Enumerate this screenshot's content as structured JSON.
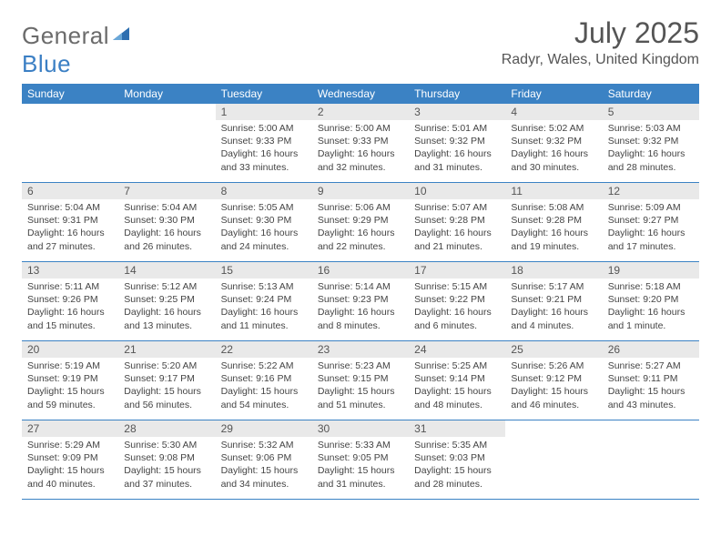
{
  "brand": {
    "text1": "General",
    "text2": "Blue",
    "logo_color": "#2e6fb0"
  },
  "title": "July 2025",
  "location": "Radyr, Wales, United Kingdom",
  "colors": {
    "header_bg": "#3b82c4",
    "header_text": "#ffffff",
    "daynum_bg": "#e9e9e9",
    "border": "#3b82c4"
  },
  "dow": [
    "Sunday",
    "Monday",
    "Tuesday",
    "Wednesday",
    "Thursday",
    "Friday",
    "Saturday"
  ],
  "weeks": [
    [
      {
        "n": "",
        "sr": "",
        "ss": "",
        "dl": ""
      },
      {
        "n": "",
        "sr": "",
        "ss": "",
        "dl": ""
      },
      {
        "n": "1",
        "sr": "5:00 AM",
        "ss": "9:33 PM",
        "dl": "16 hours and 33 minutes."
      },
      {
        "n": "2",
        "sr": "5:00 AM",
        "ss": "9:33 PM",
        "dl": "16 hours and 32 minutes."
      },
      {
        "n": "3",
        "sr": "5:01 AM",
        "ss": "9:32 PM",
        "dl": "16 hours and 31 minutes."
      },
      {
        "n": "4",
        "sr": "5:02 AM",
        "ss": "9:32 PM",
        "dl": "16 hours and 30 minutes."
      },
      {
        "n": "5",
        "sr": "5:03 AM",
        "ss": "9:32 PM",
        "dl": "16 hours and 28 minutes."
      }
    ],
    [
      {
        "n": "6",
        "sr": "5:04 AM",
        "ss": "9:31 PM",
        "dl": "16 hours and 27 minutes."
      },
      {
        "n": "7",
        "sr": "5:04 AM",
        "ss": "9:30 PM",
        "dl": "16 hours and 26 minutes."
      },
      {
        "n": "8",
        "sr": "5:05 AM",
        "ss": "9:30 PM",
        "dl": "16 hours and 24 minutes."
      },
      {
        "n": "9",
        "sr": "5:06 AM",
        "ss": "9:29 PM",
        "dl": "16 hours and 22 minutes."
      },
      {
        "n": "10",
        "sr": "5:07 AM",
        "ss": "9:28 PM",
        "dl": "16 hours and 21 minutes."
      },
      {
        "n": "11",
        "sr": "5:08 AM",
        "ss": "9:28 PM",
        "dl": "16 hours and 19 minutes."
      },
      {
        "n": "12",
        "sr": "5:09 AM",
        "ss": "9:27 PM",
        "dl": "16 hours and 17 minutes."
      }
    ],
    [
      {
        "n": "13",
        "sr": "5:11 AM",
        "ss": "9:26 PM",
        "dl": "16 hours and 15 minutes."
      },
      {
        "n": "14",
        "sr": "5:12 AM",
        "ss": "9:25 PM",
        "dl": "16 hours and 13 minutes."
      },
      {
        "n": "15",
        "sr": "5:13 AM",
        "ss": "9:24 PM",
        "dl": "16 hours and 11 minutes."
      },
      {
        "n": "16",
        "sr": "5:14 AM",
        "ss": "9:23 PM",
        "dl": "16 hours and 8 minutes."
      },
      {
        "n": "17",
        "sr": "5:15 AM",
        "ss": "9:22 PM",
        "dl": "16 hours and 6 minutes."
      },
      {
        "n": "18",
        "sr": "5:17 AM",
        "ss": "9:21 PM",
        "dl": "16 hours and 4 minutes."
      },
      {
        "n": "19",
        "sr": "5:18 AM",
        "ss": "9:20 PM",
        "dl": "16 hours and 1 minute."
      }
    ],
    [
      {
        "n": "20",
        "sr": "5:19 AM",
        "ss": "9:19 PM",
        "dl": "15 hours and 59 minutes."
      },
      {
        "n": "21",
        "sr": "5:20 AM",
        "ss": "9:17 PM",
        "dl": "15 hours and 56 minutes."
      },
      {
        "n": "22",
        "sr": "5:22 AM",
        "ss": "9:16 PM",
        "dl": "15 hours and 54 minutes."
      },
      {
        "n": "23",
        "sr": "5:23 AM",
        "ss": "9:15 PM",
        "dl": "15 hours and 51 minutes."
      },
      {
        "n": "24",
        "sr": "5:25 AM",
        "ss": "9:14 PM",
        "dl": "15 hours and 48 minutes."
      },
      {
        "n": "25",
        "sr": "5:26 AM",
        "ss": "9:12 PM",
        "dl": "15 hours and 46 minutes."
      },
      {
        "n": "26",
        "sr": "5:27 AM",
        "ss": "9:11 PM",
        "dl": "15 hours and 43 minutes."
      }
    ],
    [
      {
        "n": "27",
        "sr": "5:29 AM",
        "ss": "9:09 PM",
        "dl": "15 hours and 40 minutes."
      },
      {
        "n": "28",
        "sr": "5:30 AM",
        "ss": "9:08 PM",
        "dl": "15 hours and 37 minutes."
      },
      {
        "n": "29",
        "sr": "5:32 AM",
        "ss": "9:06 PM",
        "dl": "15 hours and 34 minutes."
      },
      {
        "n": "30",
        "sr": "5:33 AM",
        "ss": "9:05 PM",
        "dl": "15 hours and 31 minutes."
      },
      {
        "n": "31",
        "sr": "5:35 AM",
        "ss": "9:03 PM",
        "dl": "15 hours and 28 minutes."
      },
      {
        "n": "",
        "sr": "",
        "ss": "",
        "dl": ""
      },
      {
        "n": "",
        "sr": "",
        "ss": "",
        "dl": ""
      }
    ]
  ],
  "labels": {
    "sunrise": "Sunrise:",
    "sunset": "Sunset:",
    "daylight": "Daylight:"
  }
}
